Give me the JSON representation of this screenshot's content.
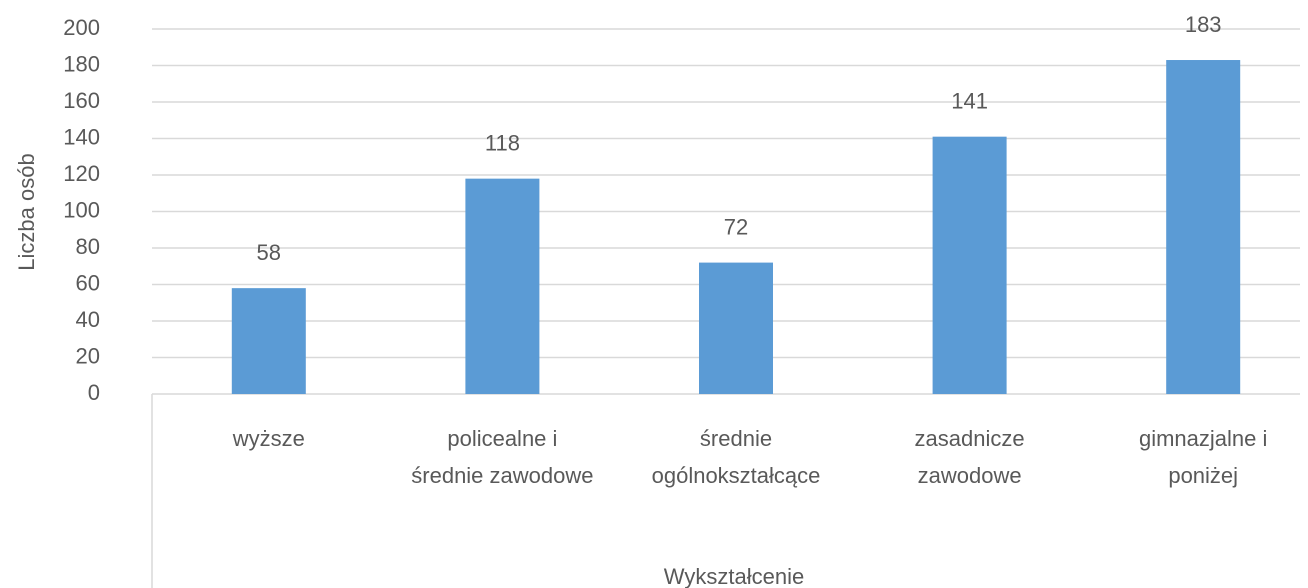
{
  "chart_data": {
    "type": "bar",
    "x_label": "Wykształcenie",
    "y_label": "Liczba osób",
    "categories": [
      "wyższe",
      "policealne i średnie zawodowe",
      "średnie ogólnokształcące",
      "zasadnicze zawodowe",
      "gimnazjalne i poniżej"
    ],
    "values": [
      58,
      118,
      72,
      141,
      183
    ],
    "color": "#5b9bd5",
    "ylim": [
      0,
      200
    ],
    "yticks": [
      0,
      20,
      40,
      60,
      80,
      100,
      120,
      140,
      160,
      180,
      200
    ],
    "grid": true
  }
}
